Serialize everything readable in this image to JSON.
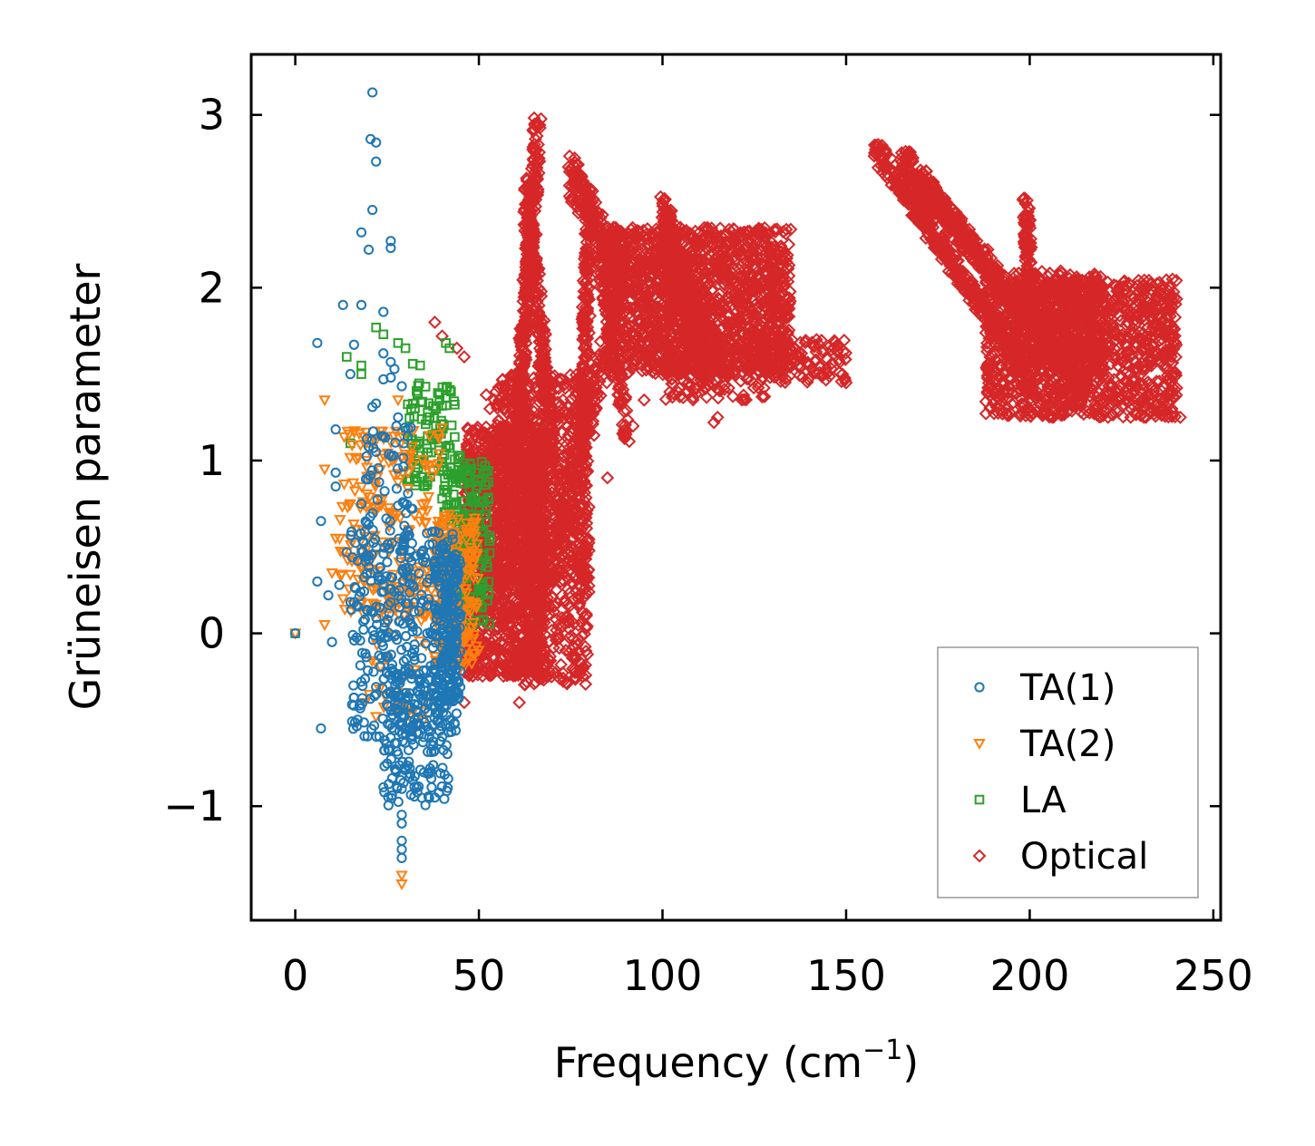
{
  "chart_data": {
    "type": "scatter",
    "title": "",
    "xlabel": "Frequency (cm",
    "xlabel_sup": "−1",
    "xlabel_close": ")",
    "ylabel": "Grüneisen parameter",
    "xlim": [
      -12,
      252
    ],
    "ylim": [
      -1.66,
      3.35
    ],
    "xticks": [
      0,
      50,
      100,
      150,
      200,
      250
    ],
    "xtick_labels": [
      "0",
      "50",
      "100",
      "150",
      "200",
      "250"
    ],
    "yticks": [
      -1,
      0,
      1,
      2,
      3
    ],
    "ytick_labels": [
      "−1",
      "0",
      "1",
      "2",
      "3"
    ],
    "grid": false,
    "legend_position": "bottom-right",
    "series": [
      {
        "name": "TA(1)",
        "marker": "circle",
        "color": "#1f77b4",
        "points": [
          [
            0,
            0
          ],
          [
            21,
            3.13
          ],
          [
            20.5,
            2.86
          ],
          [
            22,
            2.84
          ],
          [
            22,
            2.73
          ],
          [
            21,
            2.45
          ],
          [
            18,
            2.32
          ],
          [
            26,
            2.27
          ],
          [
            26,
            2.23
          ],
          [
            20,
            2.22
          ],
          [
            13,
            1.9
          ],
          [
            18,
            1.9
          ],
          [
            24,
            1.86
          ],
          [
            6,
            1.68
          ],
          [
            16,
            1.67
          ],
          [
            24,
            1.62
          ],
          [
            26,
            1.57
          ],
          [
            27,
            1.53
          ],
          [
            15,
            1.5
          ],
          [
            26,
            1.48
          ],
          [
            24,
            1.47
          ],
          [
            29,
            1.43
          ],
          [
            22,
            1.33
          ],
          [
            21,
            1.31
          ],
          [
            28,
            1.25
          ],
          [
            11,
            1.18
          ],
          [
            20,
            1.08
          ],
          [
            22,
            1.05
          ],
          [
            11,
            0.93
          ],
          [
            11,
            0.85
          ],
          [
            18,
            0.75
          ],
          [
            7,
            0.65
          ],
          [
            20,
            0.63
          ],
          [
            14,
            0.47
          ],
          [
            17,
            0.42
          ],
          [
            6,
            0.3
          ],
          [
            12,
            0.28
          ],
          [
            9,
            0.22
          ],
          [
            16,
            0.18
          ],
          [
            10,
            -0.05
          ],
          [
            18,
            -0.28
          ],
          [
            22,
            -0.31
          ],
          [
            25,
            -0.35
          ],
          [
            17,
            -0.5
          ],
          [
            7,
            -0.55
          ],
          [
            32,
            -0.55
          ],
          [
            35,
            -0.6
          ],
          [
            28,
            -0.7
          ],
          [
            30,
            -0.78
          ],
          [
            32,
            -0.85
          ],
          [
            29,
            -0.9
          ],
          [
            38,
            -0.95
          ],
          [
            29,
            -1.05
          ],
          [
            29,
            -1.1
          ],
          [
            29,
            -1.2
          ],
          [
            29,
            -1.25
          ],
          [
            29,
            -1.3
          ]
        ],
        "clouds": [
          {
            "x": [
              15,
              44
            ],
            "y": [
              -0.6,
              0.6
            ],
            "n": 330
          },
          {
            "x": [
              24,
              42
            ],
            "y": [
              -1.0,
              -0.2
            ],
            "n": 170
          },
          {
            "x": [
              38,
              45
            ],
            "y": [
              -0.4,
              0.5
            ],
            "n": 200
          },
          {
            "x": [
              18,
              32
            ],
            "y": [
              0.3,
              1.2
            ],
            "n": 70
          }
        ]
      },
      {
        "name": "TA(2)",
        "marker": "triangle_down",
        "color": "#ff7f0e",
        "points": [
          [
            0,
            0
          ],
          [
            8,
            0.05
          ],
          [
            8,
            0.95
          ],
          [
            11,
            0.55
          ],
          [
            8,
            1.35
          ],
          [
            15,
            0.75
          ],
          [
            10,
            0.35
          ],
          [
            13,
            0.2
          ],
          [
            19,
            -0.4
          ],
          [
            28,
            1.35
          ],
          [
            29,
            -1.4
          ],
          [
            29,
            -1.45
          ],
          [
            45,
            -0.2
          ],
          [
            35,
            -0.5
          ]
        ],
        "clouds": [
          {
            "x": [
              12,
              40
            ],
            "y": [
              0.1,
              1.2
            ],
            "n": 210
          },
          {
            "x": [
              38,
              50
            ],
            "y": [
              -0.2,
              0.7
            ],
            "n": 210
          },
          {
            "x": [
              20,
              36
            ],
            "y": [
              -0.5,
              0.4
            ],
            "n": 60
          }
        ]
      },
      {
        "name": "LA",
        "marker": "square",
        "color": "#2ca02c",
        "points": [
          [
            0,
            0
          ],
          [
            14,
            1.6
          ],
          [
            18,
            1.55
          ],
          [
            18,
            1.5
          ],
          [
            22,
            1.77
          ],
          [
            24,
            1.73
          ],
          [
            28,
            1.68
          ],
          [
            30,
            1.65
          ],
          [
            32,
            1.56
          ],
          [
            34,
            1.55
          ],
          [
            42,
            1.65
          ],
          [
            41,
            1.68
          ],
          [
            15,
            1.1
          ]
        ],
        "clouds": [
          {
            "x": [
              30,
              45
            ],
            "y": [
              0.85,
              1.45
            ],
            "n": 110
          },
          {
            "x": [
              40,
              53
            ],
            "y": [
              0.05,
              1.0
            ],
            "n": 200
          }
        ]
      },
      {
        "name": "Optical",
        "marker": "diamond",
        "color": "#d62728",
        "points": [
          [
            38,
            1.8
          ],
          [
            40,
            1.72
          ],
          [
            44,
            1.65
          ],
          [
            46,
            1.6
          ],
          [
            52,
            1.38
          ],
          [
            53,
            1.3
          ],
          [
            46,
            -0.4
          ],
          [
            61,
            -0.4
          ],
          [
            63,
            -0.28
          ],
          [
            85,
            0.9
          ],
          [
            92,
            1.2
          ],
          [
            95,
            1.35
          ],
          [
            101,
            1.5
          ],
          [
            98,
            1.65
          ],
          [
            115,
            1.25
          ],
          [
            114,
            1.22
          ],
          [
            150,
            1.45
          ],
          [
            149,
            1.5
          ],
          [
            240,
            1.42
          ],
          [
            241,
            1.25
          ],
          [
            158,
            2.8
          ],
          [
            166,
            2.75
          ]
        ],
        "clouds": [
          {
            "x": [
              46,
              68
            ],
            "y": [
              -0.25,
              1.2
            ],
            "n": 1300
          },
          {
            "x": [
              54,
              80
            ],
            "y": [
              0.3,
              1.5
            ],
            "n": 700
          },
          {
            "x": [
              62,
              80
            ],
            "y": [
              -0.3,
              0.8
            ],
            "n": 350
          },
          {
            "x": [
              85,
              135
            ],
            "y": [
              1.5,
              2.35
            ],
            "n": 1500
          },
          {
            "x": [
              100,
              130
            ],
            "y": [
              1.35,
              1.7
            ],
            "n": 180
          },
          {
            "x": [
              130,
              150
            ],
            "y": [
              1.45,
              1.7
            ],
            "n": 100
          }
        ],
        "bands": [
          {
            "from": [
              66,
              2.92
            ],
            "to": [
              60,
              1.0
            ],
            "width": 0.12,
            "n": 360
          },
          {
            "from": [
              63,
              2.55
            ],
            "to": [
              70,
              1.0
            ],
            "width": 0.14,
            "n": 280
          },
          {
            "from": [
              75,
              2.65
            ],
            "to": [
              90,
              2.05
            ],
            "width": 0.12,
            "n": 220
          },
          {
            "from": [
              80,
              2.5
            ],
            "to": [
              78,
              0.9
            ],
            "width": 0.15,
            "n": 200
          },
          {
            "from": [
              88,
              1.9
            ],
            "to": [
              72,
              0.6
            ],
            "width": 0.14,
            "n": 180
          },
          {
            "from": [
              83,
              2.2
            ],
            "to": [
              90,
              1.2
            ],
            "width": 0.12,
            "n": 130
          },
          {
            "from": [
              100,
              2.35
            ],
            "to": [
              112,
              1.6
            ],
            "width": 0.2,
            "n": 450
          },
          {
            "from": [
              158,
              2.8
            ],
            "to": [
              198,
              1.55
            ],
            "width": 0.06,
            "n": 420
          },
          {
            "from": [
              166,
              2.75
            ],
            "to": [
              215,
              1.4
            ],
            "width": 0.07,
            "n": 450
          },
          {
            "from": [
              165,
              2.7
            ],
            "to": [
              187,
              2.15
            ],
            "width": 0.06,
            "n": 140
          },
          {
            "from": [
              199,
              2.5
            ],
            "to": [
              200,
              1.85
            ],
            "width": 0.05,
            "n": 120
          }
        ],
        "band_clouds": [
          {
            "x": [
              188,
              240
            ],
            "y": [
              1.25,
              2.05
            ],
            "n": 1300
          },
          {
            "x": [
              195,
              220
            ],
            "y": [
              1.55,
              2.1
            ],
            "n": 380
          }
        ]
      }
    ]
  }
}
